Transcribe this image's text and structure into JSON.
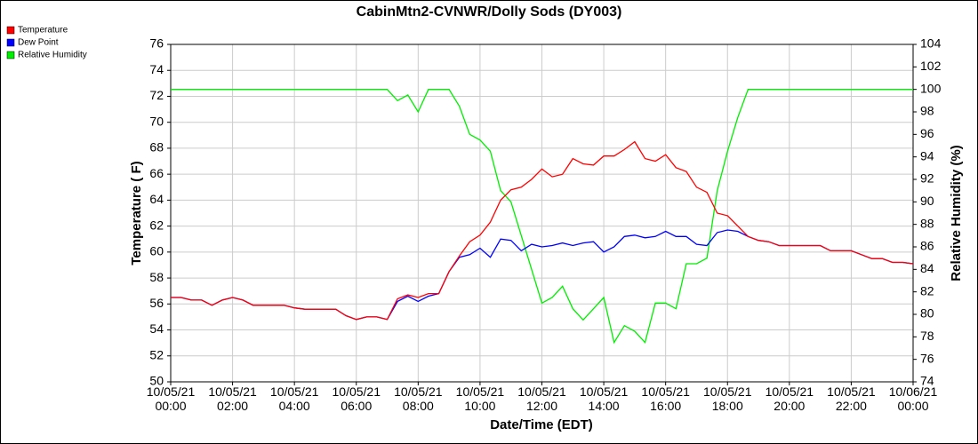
{
  "chart_data": {
    "type": "line",
    "title": "CabinMtn2-CVNWR/Dolly Sods (DY003)",
    "x_label": "Date/Time (EDT)",
    "y_label": "Temperature ( F)",
    "y2_label": "Relative Humidity (%)",
    "grid": true,
    "legend": "top-left",
    "x": [
      "10/05/21 00:00",
      "10/05/21 00:20",
      "10/05/21 00:40",
      "10/05/21 01:00",
      "10/05/21 01:20",
      "10/05/21 01:40",
      "10/05/21 02:00",
      "10/05/21 02:20",
      "10/05/21 02:40",
      "10/05/21 03:00",
      "10/05/21 03:20",
      "10/05/21 03:40",
      "10/05/21 04:00",
      "10/05/21 04:20",
      "10/05/21 04:40",
      "10/05/21 05:00",
      "10/05/21 05:20",
      "10/05/21 05:40",
      "10/05/21 06:00",
      "10/05/21 06:20",
      "10/05/21 06:40",
      "10/05/21 07:00",
      "10/05/21 07:20",
      "10/05/21 07:40",
      "10/05/21 08:00",
      "10/05/21 08:20",
      "10/05/21 08:40",
      "10/05/21 09:00",
      "10/05/21 09:20",
      "10/05/21 09:40",
      "10/05/21 10:00",
      "10/05/21 10:20",
      "10/05/21 10:40",
      "10/05/21 11:00",
      "10/05/21 11:20",
      "10/05/21 11:40",
      "10/05/21 12:00",
      "10/05/21 12:20",
      "10/05/21 12:40",
      "10/05/21 13:00",
      "10/05/21 13:20",
      "10/05/21 13:40",
      "10/05/21 14:00",
      "10/05/21 14:20",
      "10/05/21 14:40",
      "10/05/21 15:00",
      "10/05/21 15:20",
      "10/05/21 15:40",
      "10/05/21 16:00",
      "10/05/21 16:20",
      "10/05/21 16:40",
      "10/05/21 17:00",
      "10/05/21 17:20",
      "10/05/21 17:40",
      "10/05/21 18:00",
      "10/05/21 18:20",
      "10/05/21 18:40",
      "10/05/21 19:00",
      "10/05/21 19:20",
      "10/05/21 19:40",
      "10/05/21 20:00",
      "10/05/21 20:20",
      "10/05/21 20:40",
      "10/05/21 21:00",
      "10/05/21 21:20",
      "10/05/21 21:40",
      "10/05/21 22:00",
      "10/05/21 22:20",
      "10/05/21 22:40",
      "10/05/21 23:00",
      "10/05/21 23:20",
      "10/05/21 23:40",
      "10/06/21 00:00"
    ],
    "xlim": [
      "10/05/21 00:00",
      "10/06/21 00:00"
    ],
    "xticks": [
      "10/05/21 00:00",
      "10/05/21 02:00",
      "10/05/21 04:00",
      "10/05/21 06:00",
      "10/05/21 08:00",
      "10/05/21 10:00",
      "10/05/21 12:00",
      "10/05/21 14:00",
      "10/05/21 16:00",
      "10/05/21 18:00",
      "10/05/21 20:00",
      "10/05/21 22:00",
      "10/06/21 00:00"
    ],
    "ylim": [
      50,
      76
    ],
    "yticks": [
      50,
      52,
      54,
      56,
      58,
      60,
      62,
      64,
      66,
      68,
      70,
      72,
      74,
      76
    ],
    "y2lim": [
      74,
      104
    ],
    "y2ticks": [
      74,
      76,
      78,
      80,
      82,
      84,
      86,
      88,
      90,
      92,
      94,
      96,
      98,
      100,
      102,
      104
    ],
    "series": [
      {
        "name": "Temperature",
        "color": "#ff0000",
        "values": [
          56.5,
          56.5,
          56.3,
          56.3,
          55.9,
          56.3,
          56.5,
          56.3,
          55.9,
          55.9,
          55.9,
          55.9,
          55.7,
          55.6,
          55.6,
          55.6,
          55.6,
          55.1,
          54.8,
          55.0,
          55.0,
          54.8,
          56.4,
          56.7,
          56.5,
          56.8,
          56.8,
          58.5,
          59.7,
          60.8,
          61.3,
          62.3,
          64.0,
          64.8,
          65.0,
          65.6,
          66.4,
          65.8,
          66.0,
          67.2,
          66.8,
          66.7,
          67.4,
          67.4,
          67.9,
          68.5,
          67.2,
          67.0,
          67.5,
          66.5,
          66.2,
          65.0,
          64.6,
          63.0,
          62.8,
          62.0,
          61.2,
          60.9,
          60.8,
          60.5,
          60.5,
          60.5,
          60.5,
          60.5,
          60.1,
          60.1,
          60.1,
          59.8,
          59.5,
          59.5,
          59.2,
          59.2,
          59.1
        ]
      },
      {
        "name": "Dew Point",
        "color": "#0000ff",
        "values": [
          56.5,
          56.5,
          56.3,
          56.3,
          55.9,
          56.3,
          56.5,
          56.3,
          55.9,
          55.9,
          55.9,
          55.9,
          55.7,
          55.6,
          55.6,
          55.6,
          55.6,
          55.1,
          54.8,
          55.0,
          55.0,
          54.8,
          56.2,
          56.6,
          56.2,
          56.6,
          56.8,
          58.5,
          59.6,
          59.8,
          60.3,
          59.6,
          61.0,
          60.9,
          60.1,
          60.6,
          60.4,
          60.5,
          60.7,
          60.5,
          60.7,
          60.8,
          60.0,
          60.4,
          61.2,
          61.3,
          61.1,
          61.2,
          61.6,
          61.2,
          61.2,
          60.6,
          60.5,
          61.5,
          61.7,
          61.6,
          61.2,
          60.9,
          60.8,
          60.5,
          60.5,
          60.5,
          60.5,
          60.5,
          60.1,
          60.1,
          60.1,
          59.8,
          59.5,
          59.5,
          59.2,
          59.2,
          59.1
        ]
      },
      {
        "name": "Relative Humidity",
        "color": "#00ee00",
        "axis": "y2",
        "values": [
          100,
          100,
          100,
          100,
          100,
          100,
          100,
          100,
          100,
          100,
          100,
          100,
          100,
          100,
          100,
          100,
          100,
          100,
          100,
          100,
          100,
          100,
          99,
          99.5,
          98,
          100,
          100,
          100,
          98.5,
          96,
          95.5,
          94.5,
          91,
          90,
          87,
          84,
          81,
          81.5,
          82.5,
          80.5,
          79.5,
          80.5,
          81.5,
          77.5,
          79,
          78.5,
          77.5,
          81,
          81,
          80.5,
          84.5,
          84.5,
          85,
          91,
          94.5,
          97.5,
          100,
          100,
          100,
          100,
          100,
          100,
          100,
          100,
          100,
          100,
          100,
          100,
          100,
          100,
          100,
          100,
          100
        ]
      }
    ]
  }
}
